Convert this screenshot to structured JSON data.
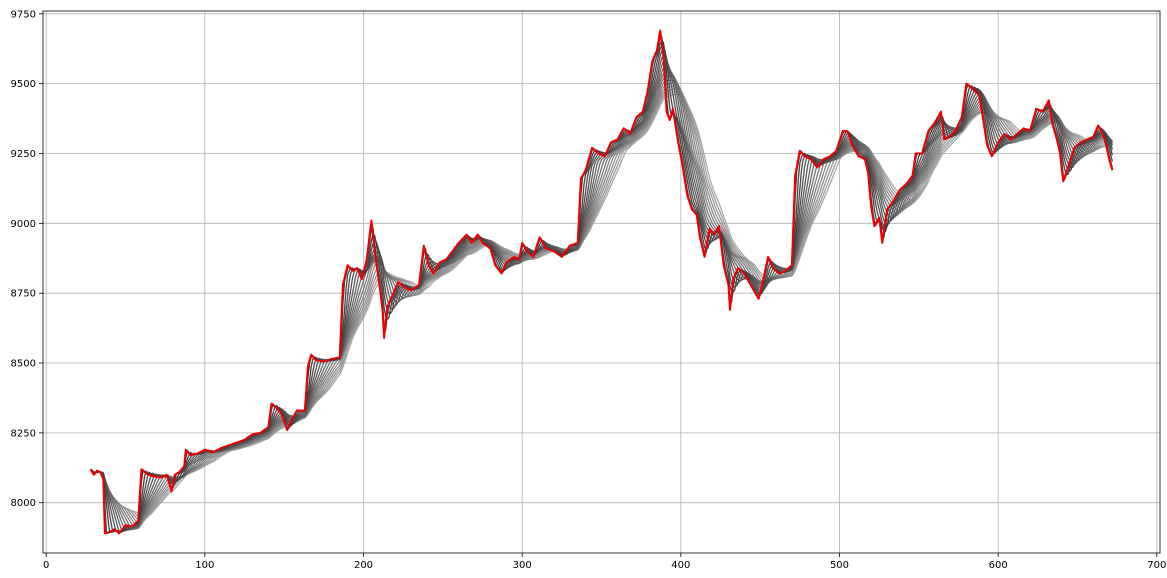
{
  "chart_data": {
    "type": "line",
    "title": "",
    "xlabel": "",
    "ylabel": "",
    "xlim": [
      -2,
      702
    ],
    "ylim": [
      7820,
      9760
    ],
    "grid": true,
    "legend": "none",
    "x_ticks": [
      0,
      100,
      200,
      300,
      400,
      500,
      600,
      700
    ],
    "y_ticks": [
      8000,
      8250,
      8500,
      8750,
      9000,
      9250,
      9500,
      9750
    ],
    "colors": {
      "price": "#ee0000",
      "ma_dark": "#3a3a3a",
      "ma_light": "#a8a8a8",
      "grid": "#b0b0b0"
    },
    "moving_average_count": 15,
    "moving_average_window_range": [
      2,
      30
    ],
    "series": [
      {
        "role": "price",
        "x_start": 28,
        "x_end": 672,
        "anchors": [
          [
            28,
            8120
          ],
          [
            30,
            8100
          ],
          [
            32,
            8115
          ],
          [
            34,
            8110
          ],
          [
            36,
            8085
          ],
          [
            37,
            7890
          ],
          [
            40,
            7895
          ],
          [
            43,
            7905
          ],
          [
            46,
            7890
          ],
          [
            50,
            7920
          ],
          [
            54,
            7915
          ],
          [
            58,
            7935
          ],
          [
            60,
            8120
          ],
          [
            63,
            8105
          ],
          [
            67,
            8095
          ],
          [
            72,
            8090
          ],
          [
            76,
            8100
          ],
          [
            79,
            8040
          ],
          [
            81,
            8100
          ],
          [
            84,
            8110
          ],
          [
            87,
            8130
          ],
          [
            88,
            8190
          ],
          [
            91,
            8170
          ],
          [
            95,
            8175
          ],
          [
            100,
            8190
          ],
          [
            105,
            8180
          ],
          [
            110,
            8195
          ],
          [
            115,
            8205
          ],
          [
            120,
            8215
          ],
          [
            125,
            8225
          ],
          [
            130,
            8245
          ],
          [
            135,
            8250
          ],
          [
            140,
            8270
          ],
          [
            142,
            8355
          ],
          [
            145,
            8340
          ],
          [
            148,
            8320
          ],
          [
            150,
            8290
          ],
          [
            152,
            8260
          ],
          [
            155,
            8300
          ],
          [
            158,
            8330
          ],
          [
            163,
            8330
          ],
          [
            165,
            8490
          ],
          [
            167,
            8530
          ],
          [
            170,
            8510
          ],
          [
            175,
            8505
          ],
          [
            180,
            8515
          ],
          [
            185,
            8520
          ],
          [
            187,
            8780
          ],
          [
            190,
            8850
          ],
          [
            193,
            8830
          ],
          [
            196,
            8840
          ],
          [
            199,
            8800
          ],
          [
            202,
            8870
          ],
          [
            205,
            9010
          ],
          [
            207,
            8900
          ],
          [
            210,
            8780
          ],
          [
            212,
            8690
          ],
          [
            213,
            8590
          ],
          [
            215,
            8700
          ],
          [
            218,
            8740
          ],
          [
            222,
            8790
          ],
          [
            226,
            8770
          ],
          [
            230,
            8760
          ],
          [
            235,
            8780
          ],
          [
            238,
            8920
          ],
          [
            241,
            8850
          ],
          [
            244,
            8820
          ],
          [
            248,
            8860
          ],
          [
            252,
            8870
          ],
          [
            256,
            8900
          ],
          [
            260,
            8930
          ],
          [
            265,
            8960
          ],
          [
            268,
            8930
          ],
          [
            272,
            8960
          ],
          [
            275,
            8930
          ],
          [
            280,
            8910
          ],
          [
            283,
            8850
          ],
          [
            287,
            8820
          ],
          [
            290,
            8860
          ],
          [
            295,
            8880
          ],
          [
            298,
            8870
          ],
          [
            300,
            8930
          ],
          [
            303,
            8900
          ],
          [
            307,
            8880
          ],
          [
            311,
            8950
          ],
          [
            315,
            8910
          ],
          [
            320,
            8900
          ],
          [
            325,
            8880
          ],
          [
            330,
            8920
          ],
          [
            335,
            8930
          ],
          [
            337,
            9160
          ],
          [
            340,
            9190
          ],
          [
            344,
            9270
          ],
          [
            348,
            9250
          ],
          [
            352,
            9240
          ],
          [
            356,
            9290
          ],
          [
            360,
            9300
          ],
          [
            364,
            9340
          ],
          [
            368,
            9320
          ],
          [
            372,
            9380
          ],
          [
            376,
            9400
          ],
          [
            379,
            9470
          ],
          [
            382,
            9580
          ],
          [
            385,
            9620
          ],
          [
            387,
            9690
          ],
          [
            389,
            9600
          ],
          [
            391,
            9400
          ],
          [
            393,
            9370
          ],
          [
            395,
            9410
          ],
          [
            398,
            9300
          ],
          [
            401,
            9210
          ],
          [
            404,
            9100
          ],
          [
            407,
            9050
          ],
          [
            410,
            9030
          ],
          [
            412,
            8950
          ],
          [
            415,
            8880
          ],
          [
            418,
            8980
          ],
          [
            421,
            8960
          ],
          [
            424,
            8990
          ],
          [
            427,
            8850
          ],
          [
            430,
            8780
          ],
          [
            431,
            8690
          ],
          [
            433,
            8800
          ],
          [
            436,
            8840
          ],
          [
            440,
            8820
          ],
          [
            443,
            8790
          ],
          [
            446,
            8760
          ],
          [
            449,
            8730
          ],
          [
            452,
            8800
          ],
          [
            455,
            8880
          ],
          [
            458,
            8840
          ],
          [
            462,
            8820
          ],
          [
            466,
            8830
          ],
          [
            470,
            8850
          ],
          [
            472,
            9170
          ],
          [
            475,
            9260
          ],
          [
            478,
            9240
          ],
          [
            482,
            9230
          ],
          [
            486,
            9200
          ],
          [
            490,
            9230
          ],
          [
            494,
            9240
          ],
          [
            498,
            9260
          ],
          [
            502,
            9330
          ],
          [
            505,
            9330
          ],
          [
            508,
            9280
          ],
          [
            512,
            9240
          ],
          [
            516,
            9230
          ],
          [
            518,
            9180
          ],
          [
            520,
            9060
          ],
          [
            522,
            8990
          ],
          [
            525,
            9020
          ],
          [
            527,
            8930
          ],
          [
            530,
            9050
          ],
          [
            534,
            9080
          ],
          [
            538,
            9120
          ],
          [
            542,
            9140
          ],
          [
            546,
            9170
          ],
          [
            548,
            9250
          ],
          [
            552,
            9250
          ],
          [
            556,
            9330
          ],
          [
            560,
            9360
          ],
          [
            564,
            9400
          ],
          [
            566,
            9300
          ],
          [
            569,
            9310
          ],
          [
            573,
            9330
          ],
          [
            577,
            9380
          ],
          [
            580,
            9500
          ],
          [
            584,
            9480
          ],
          [
            588,
            9460
          ],
          [
            590,
            9390
          ],
          [
            593,
            9280
          ],
          [
            596,
            9240
          ],
          [
            600,
            9290
          ],
          [
            604,
            9320
          ],
          [
            608,
            9300
          ],
          [
            612,
            9320
          ],
          [
            616,
            9340
          ],
          [
            620,
            9330
          ],
          [
            624,
            9410
          ],
          [
            628,
            9400
          ],
          [
            632,
            9440
          ],
          [
            634,
            9360
          ],
          [
            637,
            9300
          ],
          [
            639,
            9250
          ],
          [
            641,
            9150
          ],
          [
            644,
            9200
          ],
          [
            648,
            9270
          ],
          [
            652,
            9290
          ],
          [
            656,
            9300
          ],
          [
            660,
            9310
          ],
          [
            663,
            9350
          ],
          [
            666,
            9320
          ],
          [
            668,
            9280
          ],
          [
            670,
            9230
          ],
          [
            672,
            9190
          ]
        ]
      }
    ]
  }
}
